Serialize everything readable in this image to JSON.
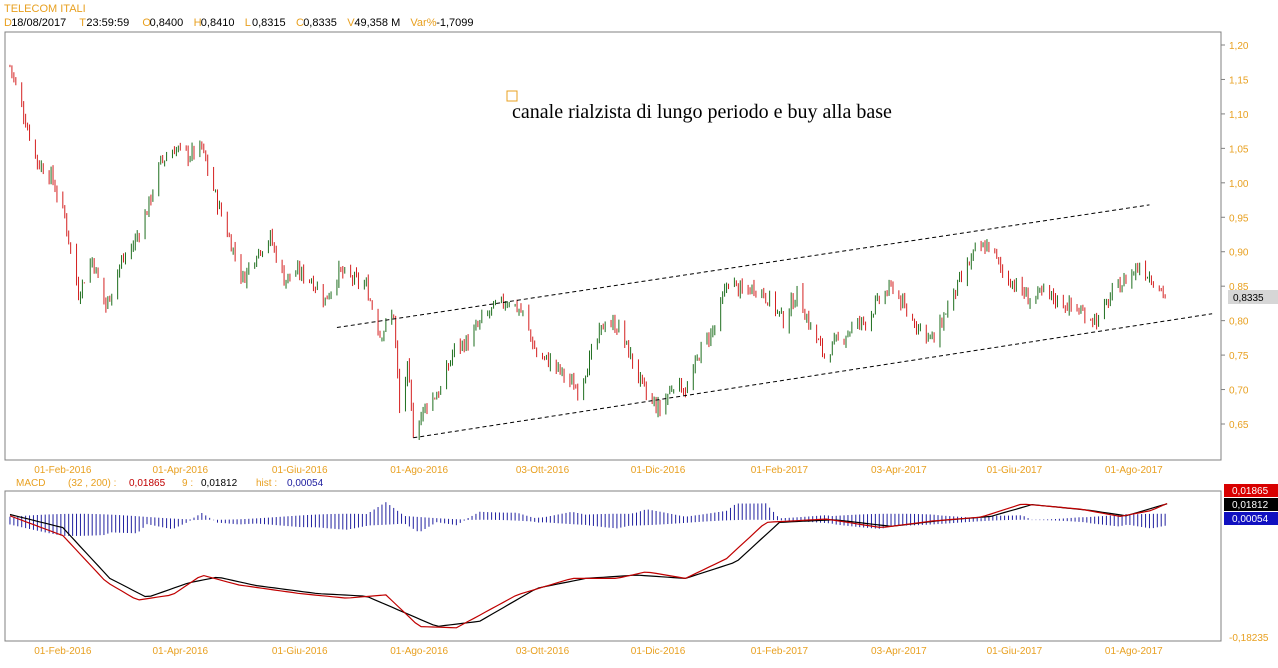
{
  "header": {
    "symbol": "TELECOM ITALI",
    "fields": [
      {
        "key": "D",
        "value": "18/08/2017"
      },
      {
        "key": "T",
        "value": "23:59:59"
      },
      {
        "key": "O",
        "value": "0,8400"
      },
      {
        "key": "H",
        "value": "0,8410"
      },
      {
        "key": "L",
        "value": "0,8315"
      },
      {
        "key": "C",
        "value": "0,8335"
      },
      {
        "key": "V",
        "value": "49,358 M"
      },
      {
        "key": "Var%",
        "value": "-1,7099"
      }
    ]
  },
  "colors": {
    "label": "#e8a020",
    "up": "#1e6e1e",
    "down": "#d42020",
    "macd_line": "#c00000",
    "signal_line": "#000000",
    "hist": "#2020a0"
  },
  "chart_data": [
    {
      "type": "candlestick",
      "annotation": "canale rialzista di lungo periodo e buy alla base",
      "last_price_label": "0,8335",
      "ylim": [
        0.6,
        1.22
      ],
      "y_ticks": [
        "1,20",
        "1,15",
        "1,10",
        "1,05",
        "1,00",
        "0,95",
        "0,90",
        "0,85",
        "0,80",
        "0,75",
        "0,70",
        "0,65"
      ],
      "x_ticks": [
        "01-Feb-2016",
        "01-Apr-2016",
        "01-Giu-2016",
        "01-Ago-2016",
        "03-Ott-2016",
        "01-Dic-2016",
        "01-Feb-2017",
        "03-Apr-2017",
        "01-Giu-2017",
        "01-Ago-2017"
      ],
      "close_path": [
        {
          "date": "2016-01-05",
          "close": 1.17
        },
        {
          "date": "2016-01-12",
          "close": 1.1
        },
        {
          "date": "2016-01-19",
          "close": 1.03
        },
        {
          "date": "2016-01-26",
          "close": 1.01
        },
        {
          "date": "2016-02-02",
          "close": 0.95
        },
        {
          "date": "2016-02-09",
          "close": 0.84
        },
        {
          "date": "2016-02-16",
          "close": 0.89
        },
        {
          "date": "2016-02-23",
          "close": 0.82
        },
        {
          "date": "2016-03-01",
          "close": 0.88
        },
        {
          "date": "2016-03-08",
          "close": 0.91
        },
        {
          "date": "2016-03-15",
          "close": 0.96
        },
        {
          "date": "2016-03-22",
          "close": 1.03
        },
        {
          "date": "2016-03-29",
          "close": 1.05
        },
        {
          "date": "2016-04-05",
          "close": 1.04
        },
        {
          "date": "2016-04-12",
          "close": 1.05
        },
        {
          "date": "2016-04-19",
          "close": 0.98
        },
        {
          "date": "2016-04-26",
          "close": 0.92
        },
        {
          "date": "2016-05-03",
          "close": 0.86
        },
        {
          "date": "2016-05-10",
          "close": 0.9
        },
        {
          "date": "2016-05-17",
          "close": 0.92
        },
        {
          "date": "2016-05-24",
          "close": 0.86
        },
        {
          "date": "2016-05-31",
          "close": 0.87
        },
        {
          "date": "2016-06-07",
          "close": 0.86
        },
        {
          "date": "2016-06-14",
          "close": 0.83
        },
        {
          "date": "2016-06-21",
          "close": 0.87
        },
        {
          "date": "2016-06-28",
          "close": 0.86
        },
        {
          "date": "2016-07-05",
          "close": 0.85
        },
        {
          "date": "2016-07-12",
          "close": 0.78
        },
        {
          "date": "2016-07-19",
          "close": 0.81
        },
        {
          "date": "2016-07-22",
          "close": 0.67
        },
        {
          "date": "2016-07-26",
          "close": 0.73
        },
        {
          "date": "2016-07-29",
          "close": 0.64
        },
        {
          "date": "2016-08-05",
          "close": 0.68
        },
        {
          "date": "2016-08-12",
          "close": 0.7
        },
        {
          "date": "2016-08-19",
          "close": 0.76
        },
        {
          "date": "2016-08-26",
          "close": 0.77
        },
        {
          "date": "2016-09-02",
          "close": 0.8
        },
        {
          "date": "2016-09-09",
          "close": 0.82
        },
        {
          "date": "2016-09-16",
          "close": 0.83
        },
        {
          "date": "2016-09-23",
          "close": 0.81
        },
        {
          "date": "2016-09-30",
          "close": 0.75
        },
        {
          "date": "2016-10-07",
          "close": 0.74
        },
        {
          "date": "2016-10-14",
          "close": 0.72
        },
        {
          "date": "2016-10-21",
          "close": 0.7
        },
        {
          "date": "2016-10-28",
          "close": 0.75
        },
        {
          "date": "2016-11-04",
          "close": 0.8
        },
        {
          "date": "2016-11-11",
          "close": 0.79
        },
        {
          "date": "2016-11-18",
          "close": 0.74
        },
        {
          "date": "2016-11-25",
          "close": 0.69
        },
        {
          "date": "2016-12-02",
          "close": 0.67
        },
        {
          "date": "2016-12-09",
          "close": 0.71
        },
        {
          "date": "2016-12-16",
          "close": 0.7
        },
        {
          "date": "2016-12-23",
          "close": 0.76
        },
        {
          "date": "2016-12-30",
          "close": 0.79
        },
        {
          "date": "2017-01-06",
          "close": 0.86
        },
        {
          "date": "2017-01-13",
          "close": 0.84
        },
        {
          "date": "2017-01-20",
          "close": 0.85
        },
        {
          "date": "2017-01-27",
          "close": 0.83
        },
        {
          "date": "2017-02-03",
          "close": 0.8
        },
        {
          "date": "2017-02-10",
          "close": 0.84
        },
        {
          "date": "2017-02-17",
          "close": 0.79
        },
        {
          "date": "2017-02-24",
          "close": 0.75
        },
        {
          "date": "2017-03-03",
          "close": 0.77
        },
        {
          "date": "2017-03-10",
          "close": 0.79
        },
        {
          "date": "2017-03-17",
          "close": 0.8
        },
        {
          "date": "2017-03-24",
          "close": 0.83
        },
        {
          "date": "2017-03-31",
          "close": 0.85
        },
        {
          "date": "2017-04-07",
          "close": 0.81
        },
        {
          "date": "2017-04-14",
          "close": 0.79
        },
        {
          "date": "2017-04-21",
          "close": 0.77
        },
        {
          "date": "2017-04-28",
          "close": 0.82
        },
        {
          "date": "2017-05-05",
          "close": 0.86
        },
        {
          "date": "2017-05-12",
          "close": 0.9
        },
        {
          "date": "2017-05-19",
          "close": 0.91
        },
        {
          "date": "2017-05-26",
          "close": 0.87
        },
        {
          "date": "2017-06-02",
          "close": 0.85
        },
        {
          "date": "2017-06-09",
          "close": 0.83
        },
        {
          "date": "2017-06-16",
          "close": 0.84
        },
        {
          "date": "2017-06-23",
          "close": 0.83
        },
        {
          "date": "2017-06-30",
          "close": 0.82
        },
        {
          "date": "2017-07-07",
          "close": 0.81
        },
        {
          "date": "2017-07-14",
          "close": 0.8
        },
        {
          "date": "2017-07-21",
          "close": 0.84
        },
        {
          "date": "2017-07-28",
          "close": 0.86
        },
        {
          "date": "2017-08-04",
          "close": 0.88
        },
        {
          "date": "2017-08-11",
          "close": 0.86
        },
        {
          "date": "2017-08-18",
          "close": 0.8335
        }
      ],
      "trend_lines": [
        {
          "name": "upper",
          "from": {
            "date": "2016-06-20",
            "price": 0.79
          },
          "to": {
            "date": "2017-08-09",
            "price": 0.968
          }
        },
        {
          "name": "lower",
          "from": {
            "date": "2016-07-29",
            "price": 0.63
          },
          "to": {
            "date": "2017-09-10",
            "price": 0.81
          }
        }
      ]
    },
    {
      "type": "line",
      "label": "MACD",
      "params": "(32 , 200) :",
      "macd_value": "0,01865",
      "signal_param": "9 :",
      "signal_value": "0,01812",
      "hist_label": "hist :",
      "hist_value": "0,00054",
      "axis_min_label": "-0,18235",
      "ylim": [
        -0.1824,
        0.03
      ],
      "macd_path": [
        {
          "date": "2016-01-05",
          "v": 0.0
        },
        {
          "date": "2016-02-01",
          "v": -0.03
        },
        {
          "date": "2016-02-23",
          "v": -0.1
        },
        {
          "date": "2016-03-10",
          "v": -0.128
        },
        {
          "date": "2016-03-28",
          "v": -0.12
        },
        {
          "date": "2016-04-12",
          "v": -0.09
        },
        {
          "date": "2016-05-01",
          "v": -0.105
        },
        {
          "date": "2016-06-01",
          "v": -0.118
        },
        {
          "date": "2016-06-25",
          "v": -0.125
        },
        {
          "date": "2016-07-15",
          "v": -0.12
        },
        {
          "date": "2016-08-01",
          "v": -0.168
        },
        {
          "date": "2016-08-20",
          "v": -0.17
        },
        {
          "date": "2016-09-20",
          "v": -0.12
        },
        {
          "date": "2016-10-18",
          "v": -0.095
        },
        {
          "date": "2016-11-10",
          "v": -0.095
        },
        {
          "date": "2016-11-25",
          "v": -0.085
        },
        {
          "date": "2016-12-15",
          "v": -0.095
        },
        {
          "date": "2017-01-05",
          "v": -0.065
        },
        {
          "date": "2017-01-25",
          "v": -0.01
        },
        {
          "date": "2017-02-25",
          "v": -0.005
        },
        {
          "date": "2017-03-25",
          "v": -0.018
        },
        {
          "date": "2017-04-20",
          "v": -0.008
        },
        {
          "date": "2017-05-15",
          "v": -0.002
        },
        {
          "date": "2017-06-05",
          "v": 0.018
        },
        {
          "date": "2017-07-05",
          "v": 0.01
        },
        {
          "date": "2017-07-25",
          "v": -0.001
        },
        {
          "date": "2017-08-10",
          "v": 0.008
        },
        {
          "date": "2017-08-18",
          "v": 0.01865
        }
      ],
      "signal_path": [
        {
          "date": "2016-01-05",
          "v": 0.002
        },
        {
          "date": "2016-02-01",
          "v": -0.018
        },
        {
          "date": "2016-02-25",
          "v": -0.095
        },
        {
          "date": "2016-03-15",
          "v": -0.124
        },
        {
          "date": "2016-04-05",
          "v": -0.102
        },
        {
          "date": "2016-04-20",
          "v": -0.093
        },
        {
          "date": "2016-05-10",
          "v": -0.106
        },
        {
          "date": "2016-06-10",
          "v": -0.118
        },
        {
          "date": "2016-07-05",
          "v": -0.122
        },
        {
          "date": "2016-08-10",
          "v": -0.168
        },
        {
          "date": "2016-09-01",
          "v": -0.16
        },
        {
          "date": "2016-09-30",
          "v": -0.11
        },
        {
          "date": "2016-10-25",
          "v": -0.095
        },
        {
          "date": "2016-11-20",
          "v": -0.09
        },
        {
          "date": "2016-12-15",
          "v": -0.095
        },
        {
          "date": "2017-01-10",
          "v": -0.07
        },
        {
          "date": "2017-02-01",
          "v": -0.01
        },
        {
          "date": "2017-03-01",
          "v": -0.006
        },
        {
          "date": "2017-03-30",
          "v": -0.016
        },
        {
          "date": "2017-04-25",
          "v": -0.007
        },
        {
          "date": "2017-05-20",
          "v": -0.001
        },
        {
          "date": "2017-06-10",
          "v": 0.017
        },
        {
          "date": "2017-07-10",
          "v": 0.008
        },
        {
          "date": "2017-07-28",
          "v": 0.0
        },
        {
          "date": "2017-08-18",
          "v": 0.01812
        }
      ]
    }
  ]
}
